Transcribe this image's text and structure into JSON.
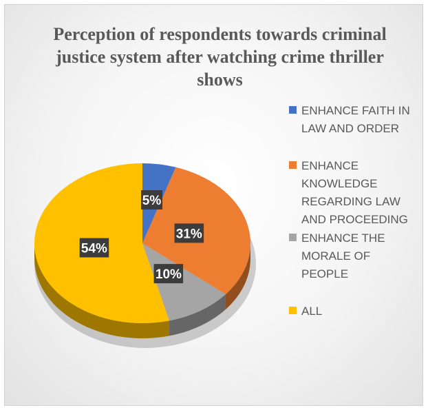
{
  "chart_data": {
    "type": "pie",
    "title": "Perception of respondents towards criminal justice system after watching crime thriller shows",
    "categories": [
      "ENHANCE FAITH IN LAW AND ORDER",
      "ENHANCE KNOWLEDGE REGARDING LAW AND PROCEEDING",
      "ENHANCE THE MORALE OF PEOPLE",
      "ALL"
    ],
    "values": [
      5,
      31,
      10,
      54
    ],
    "data_labels": [
      "5%",
      "31%",
      "10%",
      "54%"
    ],
    "colors": [
      "#4472c4",
      "#ed7d31",
      "#a5a5a5",
      "#ffc000"
    ],
    "legend_placement": "right",
    "style": "3d"
  }
}
